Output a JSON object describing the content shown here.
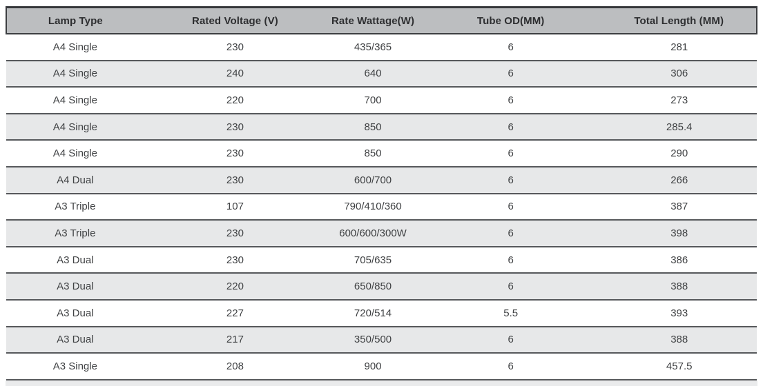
{
  "chart_data": {
    "type": "table",
    "columns": [
      "Lamp Type",
      "Rated Voltage (V)",
      "Rate Wattage(W)",
      "Tube OD(MM)",
      "Total Length (MM)"
    ],
    "rows": [
      [
        "A4 Single",
        "230",
        "435/365",
        "6",
        "281"
      ],
      [
        "A4 Single",
        "240",
        "640",
        "6",
        "306"
      ],
      [
        "A4 Single",
        "220",
        "700",
        "6",
        "273"
      ],
      [
        "A4 Single",
        "230",
        "850",
        "6",
        "285.4"
      ],
      [
        "A4 Single",
        "230",
        "850",
        "6",
        "290"
      ],
      [
        "A4 Dual",
        "230",
        "600/700",
        "6",
        "266"
      ],
      [
        "A3 Triple",
        "107",
        "790/410/360",
        "6",
        "387"
      ],
      [
        "A3 Triple",
        "230",
        "600/600/300W",
        "6",
        "398"
      ],
      [
        "A3 Dual",
        "230",
        "705/635",
        "6",
        "386"
      ],
      [
        "A3 Dual",
        "220",
        "650/850",
        "6",
        "388"
      ],
      [
        "A3 Dual",
        "227",
        "720/514",
        "5.5",
        "393"
      ],
      [
        "A3 Dual",
        "217",
        "350/500",
        "6",
        "388"
      ],
      [
        "A3 Single",
        "208",
        "900",
        "6",
        "457.5"
      ]
    ],
    "layout": {
      "column_widths_percent": [
        18.37,
        24.24,
        12.49,
        24.24,
        20.66
      ],
      "zebra_striping": true,
      "partial_row_cut_off_at_bottom": true
    }
  },
  "colors": {
    "header_bg": "#bcbec0",
    "stripe_bg": "#e7e8e9",
    "row_bg": "#ffffff",
    "border_dark": "#3c3e41",
    "row_border": "#56585b",
    "header_text": "#2d2e30",
    "cell_text": "#3f4143"
  }
}
